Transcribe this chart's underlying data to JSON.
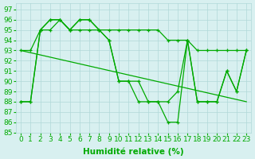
{
  "background_color": "#d8f0f0",
  "grid_color": "#b0d8d8",
  "line_color": "#00aa00",
  "xlabel": "Humidité relative (%)",
  "xlim": [
    -0.5,
    23.5
  ],
  "ylim": [
    85,
    97.6
  ],
  "yticks": [
    85,
    86,
    87,
    88,
    89,
    90,
    91,
    92,
    93,
    94,
    95,
    96,
    97
  ],
  "xticks": [
    0,
    1,
    2,
    3,
    4,
    5,
    6,
    7,
    8,
    9,
    10,
    11,
    12,
    13,
    14,
    15,
    16,
    17,
    18,
    19,
    20,
    21,
    22,
    23
  ],
  "tick_color": "#00aa00",
  "xlabel_color": "#00aa00",
  "xlabel_fontsize": 7.5,
  "tick_fontsize": 6.5,
  "series": [
    {
      "name": "line_slow_decline",
      "x": [
        0,
        1,
        2,
        3,
        4,
        5,
        6,
        7,
        8,
        9,
        10,
        11,
        12,
        13,
        14,
        15,
        16,
        17,
        18,
        19,
        20,
        21,
        22,
        23
      ],
      "y": [
        93,
        93,
        95,
        95,
        96,
        95,
        95,
        95,
        95,
        95,
        95,
        95,
        95,
        95,
        95,
        94,
        94,
        94,
        93,
        93,
        93,
        93,
        93,
        93
      ],
      "marker": true
    },
    {
      "name": "line_jagged1",
      "x": [
        0,
        1,
        2,
        3,
        4,
        5,
        6,
        7,
        8,
        9,
        10,
        11,
        12,
        13,
        14,
        15,
        16,
        17,
        18,
        19,
        20,
        21,
        22,
        23
      ],
      "y": [
        88,
        88,
        95,
        96,
        96,
        95,
        96,
        96,
        95,
        94,
        90,
        90,
        90,
        88,
        88,
        88,
        89,
        94,
        88,
        88,
        88,
        91,
        89,
        93
      ],
      "marker": true
    },
    {
      "name": "line_jagged2",
      "x": [
        0,
        1,
        2,
        3,
        4,
        5,
        6,
        7,
        8,
        9,
        10,
        11,
        12,
        13,
        14,
        15,
        16,
        17,
        18,
        19,
        20,
        21,
        22,
        23
      ],
      "y": [
        88,
        88,
        95,
        96,
        96,
        95,
        96,
        96,
        95,
        94,
        90,
        90,
        88,
        88,
        88,
        86,
        86,
        94,
        88,
        88,
        88,
        91,
        89,
        93
      ],
      "marker": true
    },
    {
      "name": "line_straight",
      "x": [
        0,
        23
      ],
      "y": [
        93,
        88
      ],
      "marker": false
    }
  ]
}
